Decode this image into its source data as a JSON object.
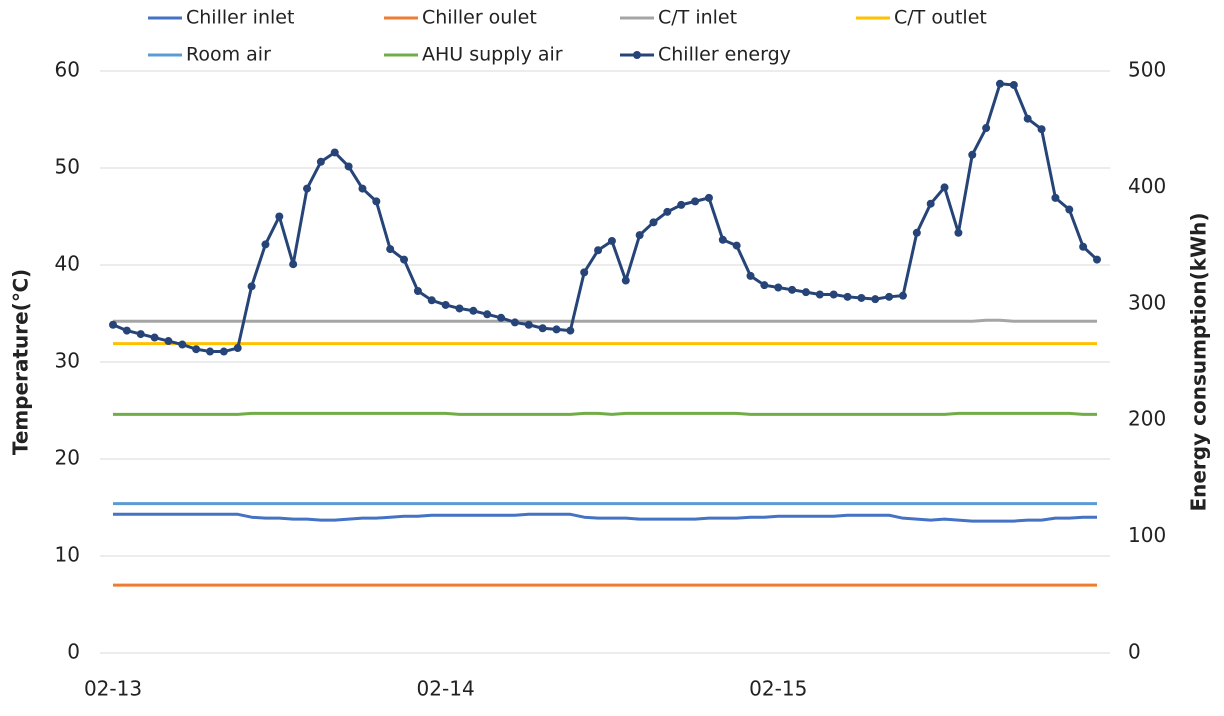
{
  "chart_data": {
    "type": "line",
    "x_title": null,
    "y_title": "Temperature(℃)",
    "y2_title": "Energy consumption(kWh)",
    "categories": [
      "02-13",
      null,
      null,
      null,
      null,
      null,
      null,
      null,
      null,
      null,
      null,
      null,
      null,
      null,
      null,
      null,
      null,
      null,
      null,
      null,
      null,
      null,
      null,
      null,
      "02-14",
      null,
      null,
      null,
      null,
      null,
      null,
      null,
      null,
      null,
      null,
      null,
      null,
      null,
      null,
      null,
      null,
      null,
      null,
      null,
      null,
      null,
      null,
      null,
      "02-15",
      null,
      null,
      null,
      null,
      null,
      null,
      null,
      null,
      null,
      null,
      null,
      null,
      null,
      null,
      null,
      null,
      null,
      null,
      null,
      null,
      null,
      null,
      null
    ],
    "ylim": [
      0,
      60
    ],
    "yticks": [
      0,
      10,
      20,
      30,
      40,
      50,
      60
    ],
    "y2lim": [
      0,
      500
    ],
    "y2ticks": [
      0,
      100,
      200,
      300,
      400,
      500
    ],
    "grid": true,
    "legend": "top",
    "series": [
      {
        "name": "Chiller inlet",
        "color": "#4472c4",
        "values": [
          14.3,
          14.3,
          14.3,
          14.3,
          14.3,
          14.3,
          14.3,
          14.3,
          14.3,
          14.3,
          14.0,
          13.9,
          13.9,
          13.8,
          13.8,
          13.7,
          13.7,
          13.8,
          13.9,
          13.9,
          14.0,
          14.1,
          14.1,
          14.2,
          14.2,
          14.2,
          14.2,
          14.2,
          14.2,
          14.2,
          14.3,
          14.3,
          14.3,
          14.3,
          14.0,
          13.9,
          13.9,
          13.9,
          13.8,
          13.8,
          13.8,
          13.8,
          13.8,
          13.9,
          13.9,
          13.9,
          14.0,
          14.0,
          14.1,
          14.1,
          14.1,
          14.1,
          14.1,
          14.2,
          14.2,
          14.2,
          14.2,
          13.9,
          13.8,
          13.7,
          13.8,
          13.7,
          13.6,
          13.6,
          13.6,
          13.6,
          13.7,
          13.7,
          13.9,
          13.9,
          14.0,
          14.0
        ]
      },
      {
        "name": "Chiller oulet",
        "color": "#ed7d31",
        "values": [
          7.0,
          7.0,
          7.0,
          7.0,
          7.0,
          7.0,
          7.0,
          7.0,
          7.0,
          7.0,
          7.0,
          7.0,
          7.0,
          7.0,
          7.0,
          7.0,
          7.0,
          7.0,
          7.0,
          7.0,
          7.0,
          7.0,
          7.0,
          7.0,
          7.0,
          7.0,
          7.0,
          7.0,
          7.0,
          7.0,
          7.0,
          7.0,
          7.0,
          7.0,
          7.0,
          7.0,
          7.0,
          7.0,
          7.0,
          7.0,
          7.0,
          7.0,
          7.0,
          7.0,
          7.0,
          7.0,
          7.0,
          7.0,
          7.0,
          7.0,
          7.0,
          7.0,
          7.0,
          7.0,
          7.0,
          7.0,
          7.0,
          7.0,
          7.0,
          7.0,
          7.0,
          7.0,
          7.0,
          7.0,
          7.0,
          7.0,
          7.0,
          7.0,
          7.0,
          7.0,
          7.0,
          7.0
        ]
      },
      {
        "name": "C/T inlet",
        "color": "#a5a5a5",
        "values": [
          34.2,
          34.2,
          34.2,
          34.2,
          34.2,
          34.2,
          34.2,
          34.2,
          34.2,
          34.2,
          34.2,
          34.2,
          34.2,
          34.2,
          34.2,
          34.2,
          34.2,
          34.2,
          34.2,
          34.2,
          34.2,
          34.2,
          34.2,
          34.2,
          34.2,
          34.2,
          34.2,
          34.2,
          34.2,
          34.2,
          34.2,
          34.2,
          34.2,
          34.2,
          34.2,
          34.2,
          34.2,
          34.2,
          34.2,
          34.2,
          34.2,
          34.2,
          34.2,
          34.2,
          34.2,
          34.2,
          34.2,
          34.2,
          34.2,
          34.2,
          34.2,
          34.2,
          34.2,
          34.2,
          34.2,
          34.2,
          34.2,
          34.2,
          34.2,
          34.2,
          34.2,
          34.2,
          34.2,
          34.3,
          34.3,
          34.2,
          34.2,
          34.2,
          34.2,
          34.2,
          34.2,
          34.2
        ]
      },
      {
        "name": "C/T outlet",
        "color": "#ffc000",
        "values": [
          31.9,
          31.9,
          31.9,
          31.9,
          31.9,
          31.9,
          31.9,
          31.9,
          31.9,
          31.9,
          31.9,
          31.9,
          31.9,
          31.9,
          31.9,
          31.9,
          31.9,
          31.9,
          31.9,
          31.9,
          31.9,
          31.9,
          31.9,
          31.9,
          31.9,
          31.9,
          31.9,
          31.9,
          31.9,
          31.9,
          31.9,
          31.9,
          31.9,
          31.9,
          31.9,
          31.9,
          31.9,
          31.9,
          31.9,
          31.9,
          31.9,
          31.9,
          31.9,
          31.9,
          31.9,
          31.9,
          31.9,
          31.9,
          31.9,
          31.9,
          31.9,
          31.9,
          31.9,
          31.9,
          31.9,
          31.9,
          31.9,
          31.9,
          31.9,
          31.9,
          31.9,
          31.9,
          31.9,
          31.9,
          31.9,
          31.9,
          31.9,
          31.9,
          31.9,
          31.9,
          31.9,
          31.9
        ]
      },
      {
        "name": "Room air",
        "color": "#5b9bd5",
        "values": [
          15.4,
          15.4,
          15.4,
          15.4,
          15.4,
          15.4,
          15.4,
          15.4,
          15.4,
          15.4,
          15.4,
          15.4,
          15.4,
          15.4,
          15.4,
          15.4,
          15.4,
          15.4,
          15.4,
          15.4,
          15.4,
          15.4,
          15.4,
          15.4,
          15.4,
          15.4,
          15.4,
          15.4,
          15.4,
          15.4,
          15.4,
          15.4,
          15.4,
          15.4,
          15.4,
          15.4,
          15.4,
          15.4,
          15.4,
          15.4,
          15.4,
          15.4,
          15.4,
          15.4,
          15.4,
          15.4,
          15.4,
          15.4,
          15.4,
          15.4,
          15.4,
          15.4,
          15.4,
          15.4,
          15.4,
          15.4,
          15.4,
          15.4,
          15.4,
          15.4,
          15.4,
          15.4,
          15.4,
          15.4,
          15.4,
          15.4,
          15.4,
          15.4,
          15.4,
          15.4,
          15.4,
          15.4
        ]
      },
      {
        "name": "AHU supply air",
        "color": "#70ad47",
        "values": [
          24.6,
          24.6,
          24.6,
          24.6,
          24.6,
          24.6,
          24.6,
          24.6,
          24.6,
          24.6,
          24.7,
          24.7,
          24.7,
          24.7,
          24.7,
          24.7,
          24.7,
          24.7,
          24.7,
          24.7,
          24.7,
          24.7,
          24.7,
          24.7,
          24.7,
          24.6,
          24.6,
          24.6,
          24.6,
          24.6,
          24.6,
          24.6,
          24.6,
          24.6,
          24.7,
          24.7,
          24.6,
          24.7,
          24.7,
          24.7,
          24.7,
          24.7,
          24.7,
          24.7,
          24.7,
          24.7,
          24.6,
          24.6,
          24.6,
          24.6,
          24.6,
          24.6,
          24.6,
          24.6,
          24.6,
          24.6,
          24.6,
          24.6,
          24.6,
          24.6,
          24.6,
          24.7,
          24.7,
          24.7,
          24.7,
          24.7,
          24.7,
          24.7,
          24.7,
          24.7,
          24.6,
          24.6
        ]
      },
      {
        "name": "Chiller energy",
        "color": "#264478",
        "axis": "y2",
        "markers": true,
        "values": [
          282,
          277,
          274,
          271,
          268,
          265,
          261,
          259,
          259,
          262,
          315,
          351,
          375,
          334,
          399,
          422,
          430,
          418,
          399,
          388,
          347,
          338,
          311,
          303,
          299,
          296,
          294,
          291,
          288,
          284,
          282,
          279,
          278,
          277,
          327,
          346,
          354,
          320,
          359,
          370,
          379,
          385,
          388,
          391,
          355,
          350,
          324,
          316,
          314,
          312,
          310,
          308,
          308,
          306,
          305,
          304,
          306,
          307,
          361,
          386,
          400,
          361,
          428,
          451,
          489,
          488,
          459,
          450,
          391,
          381,
          349,
          338
        ]
      }
    ]
  }
}
